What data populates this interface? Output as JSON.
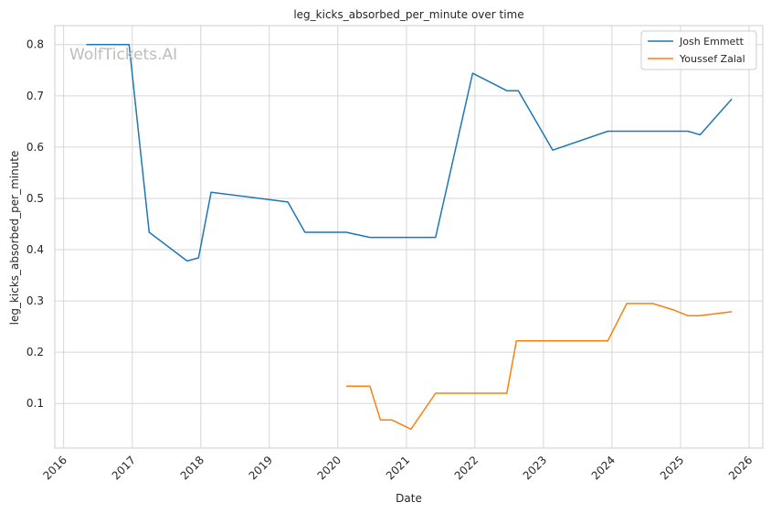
{
  "chart_data": {
    "type": "line",
    "title": "leg_kicks_absorbed_per_minute over time",
    "xlabel": "Date",
    "ylabel": "leg_kicks_absorbed_per_minute",
    "watermark": "WolfTickets.AI",
    "xlim": [
      "2015-11-15",
      "2026-03-15"
    ],
    "ylim": [
      0.013,
      0.837
    ],
    "x_ticks": [
      "2016",
      "2017",
      "2018",
      "2019",
      "2020",
      "2021",
      "2022",
      "2023",
      "2024",
      "2025",
      "2026"
    ],
    "y_ticks": [
      "0.1",
      "0.2",
      "0.3",
      "0.4",
      "0.5",
      "0.6",
      "0.7",
      "0.8"
    ],
    "grid": true,
    "legend_position": "top-right",
    "series": [
      {
        "name": "Josh Emmett",
        "color": "#1f77b4",
        "points": [
          [
            "2016-05-01",
            0.8
          ],
          [
            "2016-12-15",
            0.8
          ],
          [
            "2017-04-01",
            0.434
          ],
          [
            "2017-10-20",
            0.378
          ],
          [
            "2017-12-20",
            0.384
          ],
          [
            "2018-02-25",
            0.512
          ],
          [
            "2019-04-10",
            0.493
          ],
          [
            "2019-07-10",
            0.434
          ],
          [
            "2020-02-15",
            0.434
          ],
          [
            "2020-06-20",
            0.424
          ],
          [
            "2021-06-05",
            0.424
          ],
          [
            "2021-12-20",
            0.744
          ],
          [
            "2022-06-20",
            0.71
          ],
          [
            "2022-08-20",
            0.71
          ],
          [
            "2023-02-20",
            0.594
          ],
          [
            "2023-12-10",
            0.631
          ],
          [
            "2025-02-10",
            0.631
          ],
          [
            "2025-04-15",
            0.624
          ],
          [
            "2025-10-01",
            0.694
          ]
        ]
      },
      {
        "name": "Youssef Zalal",
        "color": "#ff7f0e",
        "points": [
          [
            "2020-02-15",
            0.134
          ],
          [
            "2020-06-20",
            0.134
          ],
          [
            "2020-08-15",
            0.068
          ],
          [
            "2020-10-15",
            0.068
          ],
          [
            "2021-01-25",
            0.05
          ],
          [
            "2021-06-05",
            0.12
          ],
          [
            "2022-06-20",
            0.12
          ],
          [
            "2022-08-10",
            0.222
          ],
          [
            "2023-12-10",
            0.222
          ],
          [
            "2024-03-20",
            0.295
          ],
          [
            "2024-08-05",
            0.295
          ],
          [
            "2024-11-20",
            0.283
          ],
          [
            "2025-02-10",
            0.271
          ],
          [
            "2025-04-10",
            0.271
          ],
          [
            "2025-10-01",
            0.279
          ]
        ]
      }
    ]
  }
}
